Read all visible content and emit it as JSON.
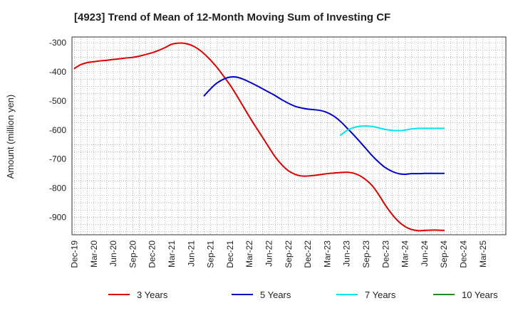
{
  "chart_data": {
    "type": "line",
    "title": "[4923]  Trend of Mean of 12-Month Moving Sum of Investing CF",
    "xlabel": "",
    "ylabel": "Amount (million yen)",
    "ylim": [
      -960,
      -280
    ],
    "yticks": [
      -300,
      -400,
      -500,
      -600,
      -700,
      -800,
      -900
    ],
    "x_categories": [
      "Dec-19",
      "Mar-20",
      "Jun-20",
      "Sep-20",
      "Dec-20",
      "Mar-21",
      "Jun-21",
      "Sep-21",
      "Dec-21",
      "Mar-22",
      "Jun-22",
      "Sep-22",
      "Dec-22",
      "Mar-23",
      "Jun-23",
      "Sep-23",
      "Dec-23",
      "Mar-24",
      "Jun-24",
      "Sep-24",
      "Dec-24",
      "Mar-25"
    ],
    "grid": true,
    "legend_position": "bottom",
    "series": [
      {
        "name": "3 Years",
        "color": "#dd0000",
        "x": [
          0,
          0.33,
          0.67,
          1,
          1.33,
          1.67,
          2,
          2.33,
          2.67,
          3,
          3.33,
          3.67,
          4,
          4.33,
          4.67,
          5,
          5.33,
          5.67,
          6,
          6.33,
          6.67,
          7,
          7.33,
          7.67,
          8,
          8.33,
          8.67,
          9,
          9.33,
          9.67,
          10,
          10.33,
          10.67,
          11,
          11.33,
          11.67,
          12,
          12.33,
          12.67,
          13,
          13.33,
          13.67,
          14,
          14.33,
          14.67,
          15,
          15.33,
          15.67,
          16,
          16.33,
          16.67,
          17,
          17.33,
          17.67,
          18,
          18.33,
          18.67,
          19
        ],
        "y": [
          -388,
          -375,
          -368,
          -365,
          -362,
          -360,
          -357,
          -355,
          -352,
          -350,
          -346,
          -340,
          -334,
          -326,
          -316,
          -305,
          -301,
          -302,
          -308,
          -320,
          -338,
          -360,
          -385,
          -415,
          -445,
          -480,
          -518,
          -555,
          -590,
          -625,
          -660,
          -693,
          -720,
          -740,
          -752,
          -758,
          -758,
          -756,
          -753,
          -750,
          -748,
          -746,
          -745,
          -748,
          -757,
          -772,
          -793,
          -825,
          -860,
          -890,
          -915,
          -932,
          -942,
          -946,
          -945,
          -944,
          -944,
          -945
        ]
      },
      {
        "name": "5 Years",
        "color": "#0000cc",
        "x": [
          6.67,
          7,
          7.33,
          7.67,
          8,
          8.33,
          8.67,
          9,
          9.33,
          9.67,
          10,
          10.33,
          10.67,
          11,
          11.33,
          11.67,
          12,
          12.33,
          12.67,
          13,
          13.33,
          13.67,
          14,
          14.33,
          14.67,
          15,
          15.33,
          15.67,
          16,
          16.33,
          16.67,
          17,
          17.33,
          17.67,
          18,
          18.33,
          18.67,
          19
        ],
        "y": [
          -482,
          -458,
          -438,
          -425,
          -418,
          -418,
          -425,
          -435,
          -446,
          -458,
          -470,
          -482,
          -496,
          -508,
          -518,
          -524,
          -528,
          -530,
          -533,
          -540,
          -552,
          -570,
          -592,
          -615,
          -640,
          -665,
          -690,
          -712,
          -730,
          -742,
          -750,
          -752,
          -750,
          -750,
          -749,
          -749,
          -749,
          -749
        ]
      },
      {
        "name": "7 Years",
        "color": "#00e5ee",
        "x": [
          13.67,
          14,
          14.33,
          14.67,
          15,
          15.33,
          15.67,
          16,
          16.33,
          16.67,
          17,
          17.33,
          17.67,
          18,
          18.33,
          18.67,
          19
        ],
        "y": [
          -618,
          -602,
          -592,
          -587,
          -586,
          -588,
          -593,
          -598,
          -601,
          -602,
          -600,
          -596,
          -594,
          -594,
          -594,
          -594,
          -594
        ]
      },
      {
        "name": "10 Years",
        "color": "#228b22",
        "x": [],
        "y": []
      }
    ]
  }
}
